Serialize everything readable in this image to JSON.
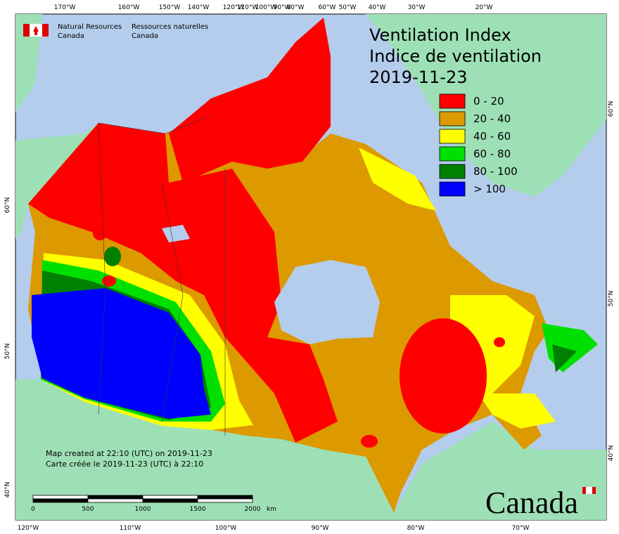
{
  "header": {
    "agency_en": [
      "Natural Resources",
      "Canada"
    ],
    "agency_fr": [
      "Ressources naturelles",
      "Canada"
    ]
  },
  "title": [
    "Ventilation Index",
    "Indice de ventilation",
    "2019-11-23"
  ],
  "legend": [
    {
      "label": "0 - 20",
      "color": "#ff0000"
    },
    {
      "label": "20 - 40",
      "color": "#dd9900"
    },
    {
      "label": "40 - 60",
      "color": "#ffff00"
    },
    {
      "label": "60 - 80",
      "color": "#00e000"
    },
    {
      "label": "80 - 100",
      "color": "#008000"
    },
    {
      "label": "> 100",
      "color": "#0000ff"
    }
  ],
  "graticule": {
    "top": [
      "170°W",
      "160°W",
      "150°W",
      "140°W",
      "120°W",
      "110°W",
      "100°W",
      "90°W",
      "80°W",
      "60°W",
      "50°W",
      "40°W",
      "30°W",
      "20°W"
    ],
    "bottom": [
      "120°W",
      "110°W",
      "100°W",
      "90°W",
      "80°W",
      "70°W"
    ],
    "left": [
      "60°N",
      "50°N",
      "40°N"
    ],
    "right": [
      "60°N",
      "50°N",
      "40°N"
    ]
  },
  "footer": [
    "Map created at 22:10 (UTC) on 2019-11-23",
    "Carte créée le 2019-11-23 (UTC) à 22:10"
  ],
  "scale": {
    "ticks": [
      0,
      500,
      1000,
      1500,
      2000
    ],
    "unit": "km"
  },
  "wordmark": "Canada"
}
